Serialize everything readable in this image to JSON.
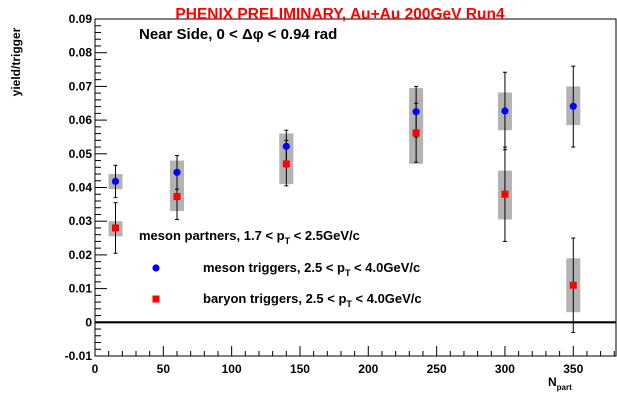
{
  "chart_data": {
    "type": "scatter",
    "title": "PHENIX PRELIMINARY, Au+Au 200GeV Run4",
    "subtitle": "Near Side,  0 < Δφ < 0.94 rad",
    "xlabel": "N",
    "xlabel_sub": "part",
    "ylabel": "yield/trigger",
    "xlim": [
      0,
      382
    ],
    "ylim": [
      -0.01,
      0.09
    ],
    "x_ticks": [
      0,
      50,
      100,
      150,
      200,
      250,
      300,
      350
    ],
    "x_tick_labels": [
      "0",
      "50",
      "100",
      "150",
      "200",
      "250",
      "300",
      "350"
    ],
    "y_ticks": [
      -0.01,
      0,
      0.01,
      0.02,
      0.03,
      0.04,
      0.05,
      0.06,
      0.07,
      0.08,
      0.09
    ],
    "y_tick_labels": [
      "-0.01",
      "0",
      "0.01",
      "0.02",
      "0.03",
      "0.04",
      "0.05",
      "0.06",
      "0.07",
      "0.08",
      "0.09"
    ],
    "zero_line": true,
    "grid": false,
    "legend": {
      "header": {
        "main": "meson partners, 1.7 < p",
        "sub": "T",
        "rest": " < 2.5GeV/c"
      },
      "entries": [
        {
          "main": "meson triggers, 2.5 < p",
          "sub": "T",
          "rest": " < 4.0GeV/c",
          "color": "#0000ff",
          "marker": "circle"
        },
        {
          "main": "baryon triggers, 2.5 < p",
          "sub": "T",
          "rest": " < 4.0GeV/c",
          "color": "#ff0000",
          "marker": "square"
        }
      ]
    },
    "title_color": "#ff0000",
    "band_color": "#b3b3b3",
    "series": [
      {
        "marker": "circle",
        "color": "#0000ff",
        "x": [
          15,
          60,
          140,
          235,
          300,
          350
        ],
        "y": [
          0.0418,
          0.0445,
          0.0522,
          0.0625,
          0.0627,
          0.0641
        ],
        "stat_lo": [
          0.037,
          0.0395,
          0.047,
          0.055,
          0.0512,
          0.052
        ],
        "stat_hi": [
          0.0466,
          0.0495,
          0.057,
          0.07,
          0.0742,
          0.076
        ],
        "sys_lo": [
          0.0395,
          0.042,
          0.0492,
          0.056,
          0.057,
          0.0585
        ],
        "sys_hi": [
          0.044,
          0.047,
          0.056,
          0.0695,
          0.0682,
          0.07
        ]
      },
      {
        "marker": "square",
        "color": "#ff0000",
        "x": [
          15,
          60,
          140,
          235,
          300,
          350
        ],
        "y": [
          0.028,
          0.0373,
          0.047,
          0.0562,
          0.038,
          0.011
        ],
        "stat_lo": [
          0.0205,
          0.0305,
          0.0405,
          0.0475,
          0.024,
          -0.003
        ],
        "stat_hi": [
          0.0355,
          0.0441,
          0.054,
          0.065,
          0.052,
          0.025
        ],
        "sys_lo": [
          0.0255,
          0.033,
          0.041,
          0.047,
          0.0305,
          0.003
        ],
        "sys_hi": [
          0.03,
          0.048,
          0.056,
          0.062,
          0.045,
          0.019
        ]
      }
    ]
  }
}
